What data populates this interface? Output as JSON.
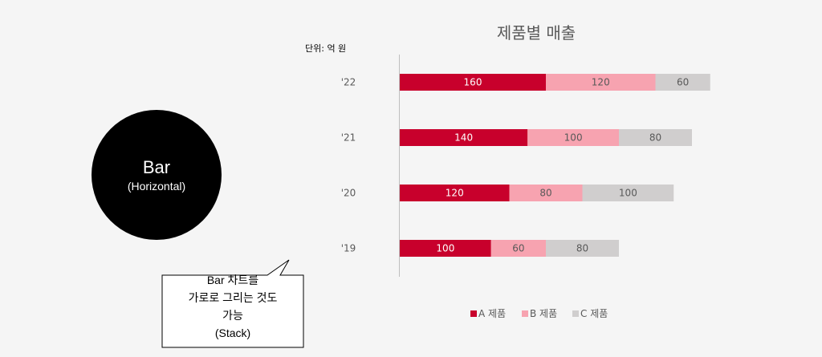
{
  "badge": {
    "title": "Bar",
    "subtitle": "(Horizontal)"
  },
  "callout": {
    "lines": [
      "Bar 차트를",
      "가로로 그리는 것도",
      "가능",
      "(Stack)"
    ]
  },
  "chart_data": {
    "type": "bar",
    "orientation": "horizontal",
    "stacked": true,
    "title": "제품별 매출",
    "unit_label": "단위: 억 원",
    "categories": [
      "'22",
      "'21",
      "'20",
      "'19"
    ],
    "series": [
      {
        "name": "A 제품",
        "color": "#c8002c",
        "values": [
          160,
          140,
          120,
          100
        ]
      },
      {
        "name": "B 제품",
        "color": "#f7a3b0",
        "values": [
          120,
          100,
          80,
          60
        ]
      },
      {
        "name": "C 제품",
        "color": "#d0cece",
        "values": [
          60,
          80,
          100,
          80
        ]
      }
    ],
    "legend_position": "bottom",
    "grid": false
  }
}
